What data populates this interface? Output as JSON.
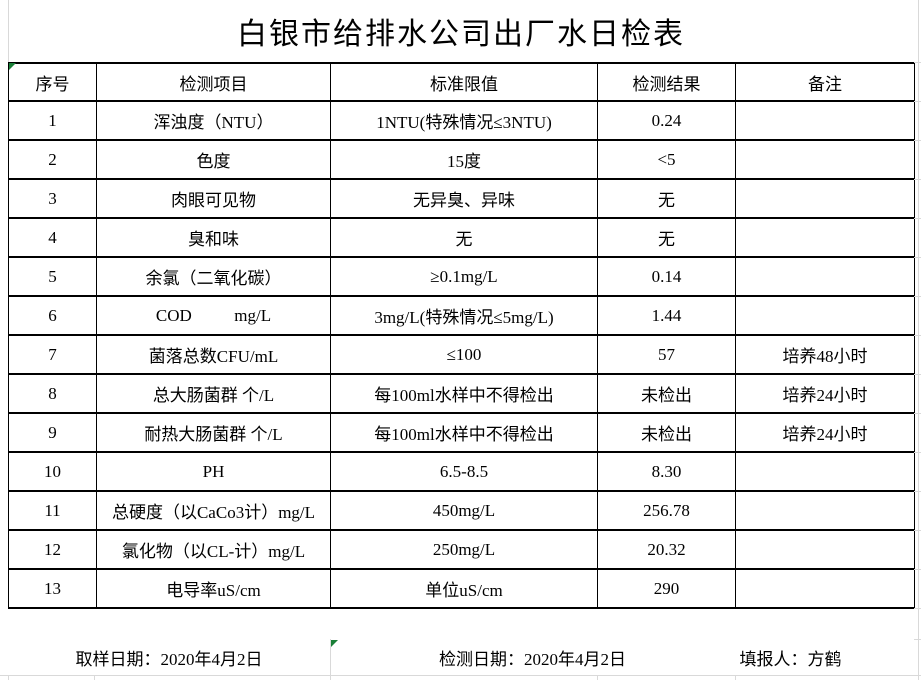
{
  "title": "白银市给排水公司出厂水日检表",
  "table": {
    "headers": [
      "序号",
      "检测项目",
      "标准限值",
      "检测结果",
      "备注"
    ],
    "rows": [
      [
        "1",
        "浑浊度（NTU）",
        "1NTU(特殊情况≤3NTU)",
        "0.24",
        ""
      ],
      [
        "2",
        "色度",
        "15度",
        "<5",
        ""
      ],
      [
        "3",
        "肉眼可见物",
        "无异臭、异味",
        "无",
        ""
      ],
      [
        "4",
        "臭和味",
        "无",
        "无",
        ""
      ],
      [
        "5",
        "余氯（二氧化碳）",
        "≥0.1mg/L",
        "0.14",
        ""
      ],
      [
        "6",
        "COD          mg/L",
        "3mg/L(特殊情况≤5mg/L)",
        "1.44",
        ""
      ],
      [
        "7",
        "菌落总数CFU/mL",
        "≤100",
        "57",
        "培养48小时"
      ],
      [
        "8",
        "总大肠菌群 个/L",
        "每100ml水样中不得检出",
        "未检出",
        "培养24小时"
      ],
      [
        "9",
        "耐热大肠菌群 个/L",
        "每100ml水样中不得检出",
        "未检出",
        "培养24小时"
      ],
      [
        "10",
        "PH",
        "6.5-8.5",
        "8.30",
        ""
      ],
      [
        "11",
        "总硬度（以CaCo3计）mg/L",
        "450mg/L",
        "256.78",
        ""
      ],
      [
        "12",
        "氯化物（以CL-计）mg/L",
        "250mg/L",
        "20.32",
        ""
      ],
      [
        "13",
        "电导率uS/cm",
        "单位uS/cm",
        "290",
        ""
      ]
    ]
  },
  "footer": {
    "sampling_date": "取样日期：2020年4月2日",
    "test_date": "检测日期：2020年4月2日",
    "reporter": "填报人：方鹤"
  },
  "colors": {
    "border": "#000000",
    "gridline": "#d9d9d9",
    "error_indicator": "#1a7f37"
  }
}
